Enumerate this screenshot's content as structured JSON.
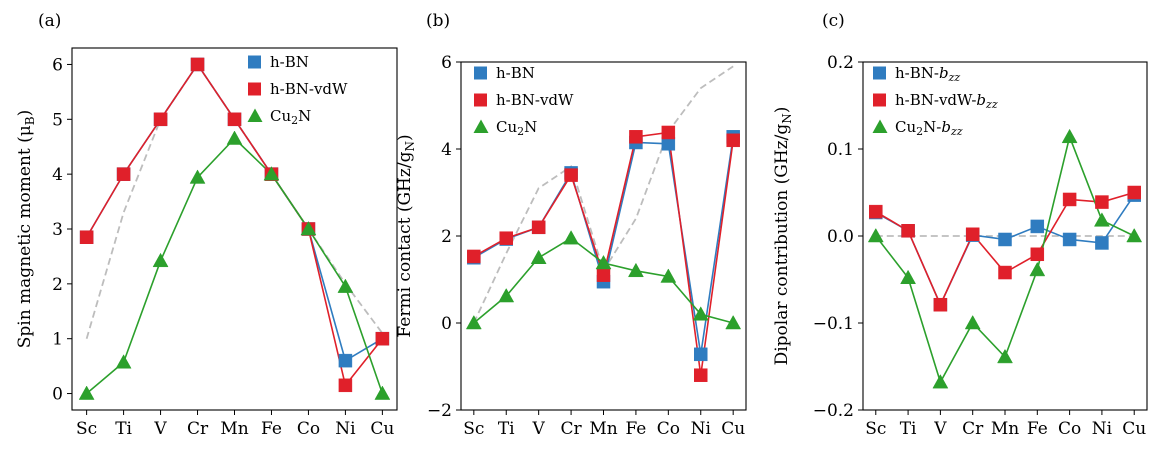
{
  "chart_data": [
    {
      "type": "line",
      "panel_label": "(a)",
      "title": "",
      "xlabel": "",
      "ylabel": "Spin magnetic moment (μ",
      "ylabel_sub": "B",
      "ylabel_close": ")",
      "categories": [
        "Sc",
        "Ti",
        "V",
        "Cr",
        "Mn",
        "Fe",
        "Co",
        "Ni",
        "Cu"
      ],
      "ylim": [
        -0.3,
        6.3
      ],
      "yticks": [
        0,
        1,
        2,
        3,
        4,
        5,
        6
      ],
      "ytick_labels": [
        "0",
        "1",
        "2",
        "3",
        "4",
        "5",
        "6"
      ],
      "legend_position": "top-right",
      "reference": {
        "name": "reference",
        "values": [
          1,
          3.3,
          5,
          6,
          5,
          4,
          3,
          2,
          1.1
        ]
      },
      "series": [
        {
          "name": "h-BN",
          "label_main": "h-BN",
          "label_sub": "",
          "label_tail": "",
          "color": "#2f7cc0",
          "marker": "square",
          "values": [
            2.85,
            4.0,
            5.0,
            6.0,
            5.0,
            4.0,
            3.0,
            0.6,
            1.0
          ]
        },
        {
          "name": "h-BN-vdW",
          "label_main": "h-BN-vdW",
          "label_sub": "",
          "label_tail": "",
          "color": "#e0202a",
          "marker": "square",
          "values": [
            2.85,
            4.0,
            5.0,
            6.0,
            5.0,
            4.0,
            3.0,
            0.15,
            1.0
          ]
        },
        {
          "name": "Cu2N",
          "label_main": "Cu",
          "label_sub": "2",
          "label_tail": "N",
          "color": "#2ca02c",
          "marker": "triangle",
          "values": [
            0,
            0.57,
            2.42,
            3.94,
            4.65,
            4.0,
            3.0,
            1.95,
            0
          ]
        }
      ]
    },
    {
      "type": "line",
      "panel_label": "(b)",
      "title": "",
      "xlabel": "",
      "ylabel": "Fermi contact (GHz/g",
      "ylabel_sub": "N",
      "ylabel_close": ")",
      "categories": [
        "Sc",
        "Ti",
        "V",
        "Cr",
        "Mn",
        "Fe",
        "Co",
        "Ni",
        "Cu"
      ],
      "ylim": [
        -2,
        6
      ],
      "yticks": [
        -2,
        0,
        2,
        4,
        6
      ],
      "ytick_labels": [
        "−2",
        "0",
        "2",
        "4",
        "6"
      ],
      "legend_position": "top-left",
      "reference": {
        "name": "reference",
        "values": [
          0,
          1.6,
          3.1,
          3.6,
          1.2,
          2.4,
          4.4,
          5.4,
          5.9
        ]
      },
      "series": [
        {
          "name": "h-BN",
          "label_main": "h-BN",
          "label_sub": "",
          "label_tail": "",
          "color": "#2f7cc0",
          "marker": "square",
          "values": [
            1.5,
            1.93,
            2.2,
            3.45,
            0.95,
            4.15,
            4.12,
            -0.72,
            4.28
          ]
        },
        {
          "name": "h-BN-vdW",
          "label_main": "h-BN-vdW",
          "label_sub": "",
          "label_tail": "",
          "color": "#e0202a",
          "marker": "square",
          "values": [
            1.53,
            1.95,
            2.2,
            3.4,
            1.1,
            4.28,
            4.38,
            -1.2,
            4.2
          ]
        },
        {
          "name": "Cu2N",
          "label_main": "Cu",
          "label_sub": "2",
          "label_tail": "N",
          "color": "#2ca02c",
          "marker": "triangle",
          "values": [
            0,
            0.62,
            1.5,
            1.95,
            1.38,
            1.2,
            1.07,
            0.2,
            0
          ]
        }
      ]
    },
    {
      "type": "line",
      "panel_label": "(c)",
      "title": "",
      "xlabel": "",
      "ylabel": "Dipolar contribution (GHz/g",
      "ylabel_sub": "N",
      "ylabel_close": ")",
      "categories": [
        "Sc",
        "Ti",
        "V",
        "Cr",
        "Mn",
        "Fe",
        "Co",
        "Ni",
        "Cu"
      ],
      "ylim": [
        -0.2,
        0.2
      ],
      "yticks": [
        -0.2,
        -0.1,
        0,
        0.1,
        0.2
      ],
      "ytick_labels": [
        "−0.2",
        "−0.1",
        "0.0",
        "0.1",
        "0.2"
      ],
      "legend_position": "top-left",
      "reference": {
        "name": "reference",
        "values": [
          0,
          0,
          0,
          0,
          0,
          0,
          0,
          0,
          0
        ]
      },
      "series": [
        {
          "name": "h-BN-bzz",
          "label_main": "h-BN-",
          "label_sub": "",
          "label_tail": "",
          "label_italic": "b",
          "label_italic_sub": "zz",
          "color": "#2f7cc0",
          "marker": "square",
          "values": [
            0.027,
            0.006,
            -0.079,
            0.001,
            -0.004,
            0.011,
            -0.004,
            -0.008,
            0.047
          ]
        },
        {
          "name": "h-BN-vdW-bzz",
          "label_main": "h-BN-vdW-",
          "label_sub": "",
          "label_tail": "",
          "label_italic": "b",
          "label_italic_sub": "zz",
          "color": "#e0202a",
          "marker": "square",
          "values": [
            0.028,
            0.006,
            -0.079,
            0.002,
            -0.042,
            -0.021,
            0.042,
            0.039,
            0.05
          ]
        },
        {
          "name": "Cu2N-bzz",
          "label_main": "Cu",
          "label_sub": "2",
          "label_tail": "N-",
          "label_italic": "b",
          "label_italic_sub": "zz",
          "color": "#2ca02c",
          "marker": "triangle",
          "values": [
            0,
            -0.048,
            -0.168,
            -0.1,
            -0.139,
            -0.039,
            0.114,
            0.018,
            0
          ]
        }
      ]
    }
  ]
}
